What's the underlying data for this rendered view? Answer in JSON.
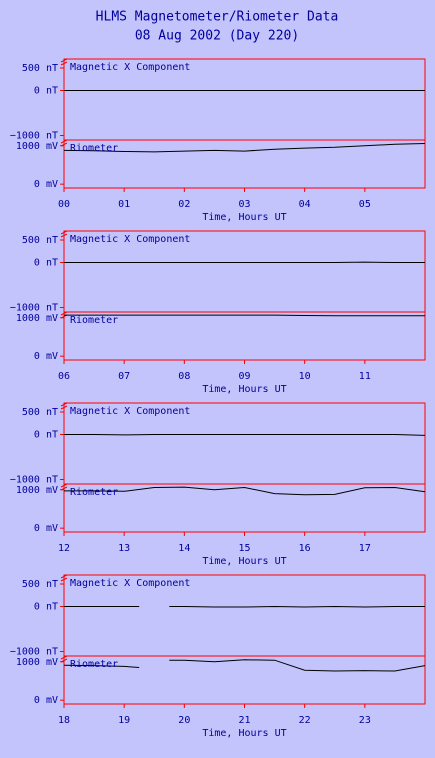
{
  "header": {
    "title": "HLMS Magnetometer/Riometer Data",
    "subtitle": "08 Aug 2002 (Day 220)"
  },
  "chart_data": [
    {
      "type": "line",
      "x": [
        0,
        0.5,
        1,
        1.5,
        2,
        2.5,
        3,
        3.5,
        4,
        4.5,
        5,
        5.5,
        6
      ],
      "series": [
        {
          "name": "Magnetic X Component",
          "color": "#000000",
          "values": [
            0,
            0,
            0,
            0,
            0,
            0,
            0,
            0,
            0,
            0,
            0,
            0,
            0
          ]
        }
      ],
      "xlim": [
        0,
        6
      ],
      "ylim": [
        -1100,
        700
      ],
      "yticks": [
        {
          "value": 500,
          "label": "500 nT"
        },
        {
          "value": 0,
          "label": "0 nT"
        },
        {
          "value": -1000,
          "label": "−1000 nT"
        }
      ]
    },
    {
      "type": "line",
      "x": [
        0,
        0.5,
        1,
        1.5,
        2,
        2.5,
        3,
        3.5,
        4,
        4.5,
        5,
        5.5,
        6
      ],
      "series": [
        {
          "name": "Riometer",
          "color": "#000000",
          "values": [
            880,
            870,
            850,
            840,
            860,
            880,
            860,
            910,
            940,
            960,
            1000,
            1040,
            1060
          ]
        }
      ],
      "xlim": [
        0,
        6
      ],
      "ylim": [
        -100,
        1150
      ],
      "yticks": [
        {
          "value": 1000,
          "label": "1000 mV"
        },
        {
          "value": 0,
          "label": "0 mV"
        }
      ],
      "xticks": [
        {
          "value": 0,
          "label": "00"
        },
        {
          "value": 1,
          "label": "01"
        },
        {
          "value": 2,
          "label": "02"
        },
        {
          "value": 3,
          "label": "03"
        },
        {
          "value": 4,
          "label": "04"
        },
        {
          "value": 5,
          "label": "05"
        }
      ],
      "xlabel": "Time, Hours UT"
    },
    {
      "type": "line",
      "x": [
        6,
        6.5,
        7,
        7.5,
        8,
        8.5,
        9,
        9.5,
        10,
        10.5,
        11,
        11.5,
        12
      ],
      "series": [
        {
          "name": "Magnetic X Component",
          "color": "#000000",
          "values": [
            0,
            0,
            0,
            0,
            0,
            0,
            0,
            0,
            0,
            0,
            10,
            0,
            0
          ]
        }
      ],
      "xlim": [
        6,
        12
      ],
      "ylim": [
        -1100,
        700
      ],
      "yticks": [
        {
          "value": 500,
          "label": "500 nT"
        },
        {
          "value": 0,
          "label": "0 nT"
        },
        {
          "value": -1000,
          "label": "−1000 nT"
        }
      ]
    },
    {
      "type": "line",
      "x": [
        6,
        6.5,
        7,
        7.5,
        8,
        8.5,
        9,
        9.5,
        10,
        10.5,
        11,
        11.5,
        12
      ],
      "series": [
        {
          "name": "Riometer",
          "color": "#000000",
          "values": [
            1070,
            1070,
            1070,
            1070,
            1070,
            1070,
            1070,
            1070,
            1060,
            1050,
            1050,
            1050,
            1050
          ]
        }
      ],
      "xlim": [
        6,
        12
      ],
      "ylim": [
        -100,
        1150
      ],
      "yticks": [
        {
          "value": 1000,
          "label": "1000 mV"
        },
        {
          "value": 0,
          "label": "0 mV"
        }
      ],
      "xticks": [
        {
          "value": 6,
          "label": "06"
        },
        {
          "value": 7,
          "label": "07"
        },
        {
          "value": 8,
          "label": "08"
        },
        {
          "value": 9,
          "label": "09"
        },
        {
          "value": 10,
          "label": "10"
        },
        {
          "value": 11,
          "label": "11"
        }
      ],
      "xlabel": "Time, Hours UT"
    },
    {
      "type": "line",
      "x": [
        12,
        12.5,
        13,
        13.5,
        14,
        14.5,
        15,
        15.5,
        16,
        16.5,
        17,
        17.5,
        18
      ],
      "series": [
        {
          "name": "Magnetic X Component",
          "color": "#000000",
          "values": [
            0,
            0,
            -10,
            0,
            0,
            0,
            0,
            0,
            0,
            0,
            0,
            0,
            -20
          ]
        }
      ],
      "xlim": [
        12,
        18
      ],
      "ylim": [
        -1100,
        700
      ],
      "yticks": [
        {
          "value": 500,
          "label": "500 nT"
        },
        {
          "value": 0,
          "label": "0 nT"
        },
        {
          "value": -1000,
          "label": "−1000 nT"
        }
      ]
    },
    {
      "type": "line",
      "x": [
        12,
        12.5,
        13,
        13.5,
        14,
        14.5,
        15,
        15.5,
        16,
        16.5,
        17,
        17.5,
        18
      ],
      "series": [
        {
          "name": "Riometer",
          "color": "#000000",
          "values": [
            970,
            970,
            960,
            1060,
            1070,
            1000,
            1060,
            900,
            870,
            880,
            1050,
            1060,
            950
          ]
        }
      ],
      "xlim": [
        12,
        18
      ],
      "ylim": [
        -100,
        1150
      ],
      "yticks": [
        {
          "value": 1000,
          "label": "1000 mV"
        },
        {
          "value": 0,
          "label": "0 mV"
        }
      ],
      "xticks": [
        {
          "value": 12,
          "label": "12"
        },
        {
          "value": 13,
          "label": "13"
        },
        {
          "value": 14,
          "label": "14"
        },
        {
          "value": 15,
          "label": "15"
        },
        {
          "value": 16,
          "label": "16"
        },
        {
          "value": 17,
          "label": "17"
        }
      ],
      "xlabel": "Time, Hours UT"
    },
    {
      "type": "line",
      "x": [
        18,
        18.5,
        19,
        19.25,
        19.5,
        19.75,
        20,
        20.5,
        21,
        21.5,
        22,
        22.5,
        23,
        23.5,
        24
      ],
      "series": [
        {
          "name": "Magnetic X Component",
          "color": "#000000",
          "values": [
            0,
            0,
            0,
            0,
            null,
            0,
            0,
            -10,
            -10,
            0,
            -10,
            0,
            -10,
            0,
            0
          ]
        }
      ],
      "xlim": [
        18,
        24
      ],
      "ylim": [
        -1100,
        700
      ],
      "yticks": [
        {
          "value": 500,
          "label": "500 nT"
        },
        {
          "value": 0,
          "label": "0 nT"
        },
        {
          "value": -1000,
          "label": "−1000 nT"
        }
      ]
    },
    {
      "type": "line",
      "x": [
        18,
        18.5,
        19,
        19.25,
        19.5,
        19.75,
        20,
        20.5,
        21,
        21.5,
        22,
        22.5,
        23,
        23.5,
        24
      ],
      "series": [
        {
          "name": "Riometer",
          "color": "#000000",
          "values": [
            910,
            900,
            880,
            850,
            null,
            1040,
            1040,
            1000,
            1050,
            1040,
            780,
            760,
            770,
            760,
            900
          ]
        }
      ],
      "xlim": [
        18,
        24
      ],
      "ylim": [
        -100,
        1150
      ],
      "yticks": [
        {
          "value": 1000,
          "label": "1000 mV"
        },
        {
          "value": 0,
          "label": "0 mV"
        }
      ],
      "xticks": [
        {
          "value": 18,
          "label": "18"
        },
        {
          "value": 19,
          "label": "19"
        },
        {
          "value": 20,
          "label": "20"
        },
        {
          "value": 21,
          "label": "21"
        },
        {
          "value": 22,
          "label": "22"
        },
        {
          "value": 23,
          "label": "23"
        }
      ],
      "xlabel": "Time, Hours UT"
    }
  ]
}
